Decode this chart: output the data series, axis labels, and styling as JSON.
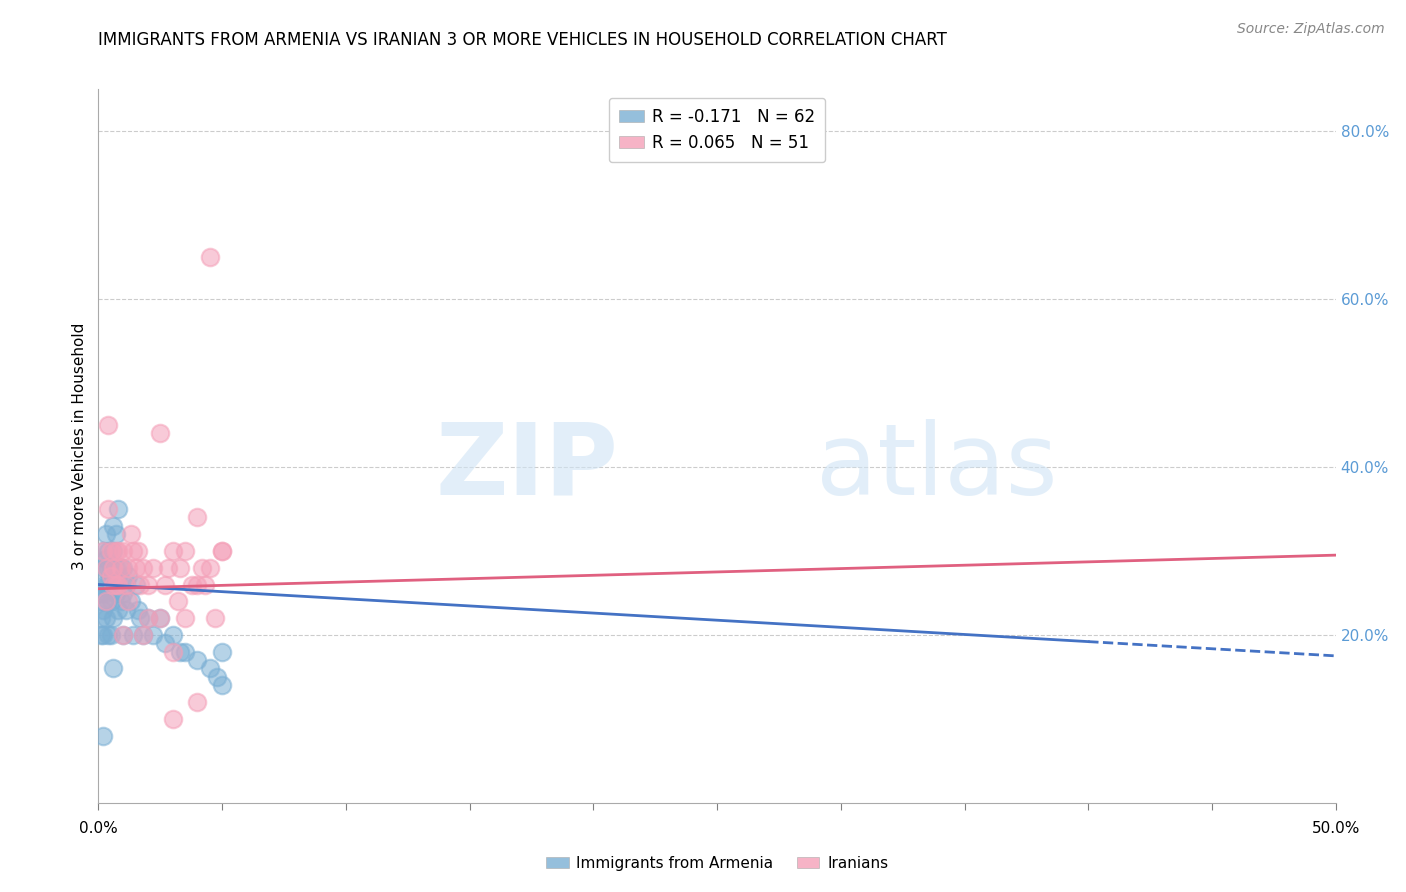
{
  "title": "IMMIGRANTS FROM ARMENIA VS IRANIAN 3 OR MORE VEHICLES IN HOUSEHOLD CORRELATION CHART",
  "source": "Source: ZipAtlas.com",
  "ylabel": "3 or more Vehicles in Household",
  "color_armenia": "#7bafd4",
  "color_iranian": "#f4a0b8",
  "color_arm_line": "#4472c4",
  "color_ira_line": "#e06080",
  "xlim": [
    0.0,
    0.5
  ],
  "ylim": [
    0.0,
    0.85
  ],
  "right_yticks": [
    0.2,
    0.4,
    0.6,
    0.8
  ],
  "right_yticklabels": [
    "20.0%",
    "40.0%",
    "60.0%",
    "80.0%"
  ],
  "legend_entry1": "R = -0.171   N = 62",
  "legend_entry2": "R = 0.065   N = 51",
  "title_fontsize": 12,
  "axis_label_fontsize": 11,
  "tick_fontsize": 11,
  "source_fontsize": 10,
  "armenia_x": [
    0.001,
    0.001,
    0.001,
    0.002,
    0.002,
    0.002,
    0.002,
    0.002,
    0.002,
    0.003,
    0.003,
    0.003,
    0.003,
    0.003,
    0.003,
    0.004,
    0.004,
    0.004,
    0.004,
    0.004,
    0.005,
    0.005,
    0.005,
    0.005,
    0.006,
    0.006,
    0.006,
    0.006,
    0.007,
    0.007,
    0.007,
    0.008,
    0.008,
    0.008,
    0.009,
    0.009,
    0.01,
    0.01,
    0.01,
    0.011,
    0.011,
    0.012,
    0.013,
    0.014,
    0.015,
    0.016,
    0.017,
    0.018,
    0.02,
    0.022,
    0.025,
    0.027,
    0.03,
    0.033,
    0.035,
    0.04,
    0.045,
    0.048,
    0.05,
    0.05,
    0.002,
    0.006
  ],
  "armenia_y": [
    0.25,
    0.22,
    0.2,
    0.3,
    0.28,
    0.26,
    0.24,
    0.23,
    0.2,
    0.32,
    0.29,
    0.28,
    0.26,
    0.25,
    0.22,
    0.3,
    0.28,
    0.26,
    0.24,
    0.2,
    0.28,
    0.26,
    0.24,
    0.2,
    0.33,
    0.3,
    0.27,
    0.22,
    0.32,
    0.28,
    0.25,
    0.35,
    0.27,
    0.23,
    0.28,
    0.24,
    0.28,
    0.25,
    0.2,
    0.26,
    0.23,
    0.27,
    0.24,
    0.2,
    0.26,
    0.23,
    0.22,
    0.2,
    0.22,
    0.2,
    0.22,
    0.19,
    0.2,
    0.18,
    0.18,
    0.17,
    0.16,
    0.15,
    0.18,
    0.14,
    0.08,
    0.16
  ],
  "iranian_x": [
    0.002,
    0.003,
    0.004,
    0.004,
    0.005,
    0.005,
    0.006,
    0.007,
    0.007,
    0.008,
    0.009,
    0.01,
    0.011,
    0.012,
    0.013,
    0.014,
    0.015,
    0.016,
    0.017,
    0.018,
    0.02,
    0.022,
    0.025,
    0.027,
    0.028,
    0.03,
    0.032,
    0.033,
    0.035,
    0.038,
    0.04,
    0.042,
    0.043,
    0.045,
    0.047,
    0.05,
    0.008,
    0.012,
    0.018,
    0.025,
    0.03,
    0.035,
    0.04,
    0.045,
    0.05,
    0.003,
    0.006,
    0.01,
    0.02,
    0.03,
    0.04
  ],
  "iranian_y": [
    0.3,
    0.28,
    0.35,
    0.45,
    0.27,
    0.3,
    0.28,
    0.3,
    0.26,
    0.3,
    0.28,
    0.3,
    0.26,
    0.28,
    0.32,
    0.3,
    0.28,
    0.3,
    0.26,
    0.28,
    0.26,
    0.28,
    0.44,
    0.26,
    0.28,
    0.3,
    0.24,
    0.28,
    0.3,
    0.26,
    0.34,
    0.28,
    0.26,
    0.28,
    0.22,
    0.3,
    0.26,
    0.24,
    0.2,
    0.22,
    0.18,
    0.22,
    0.26,
    0.65,
    0.3,
    0.24,
    0.26,
    0.2,
    0.22,
    0.1,
    0.12
  ]
}
